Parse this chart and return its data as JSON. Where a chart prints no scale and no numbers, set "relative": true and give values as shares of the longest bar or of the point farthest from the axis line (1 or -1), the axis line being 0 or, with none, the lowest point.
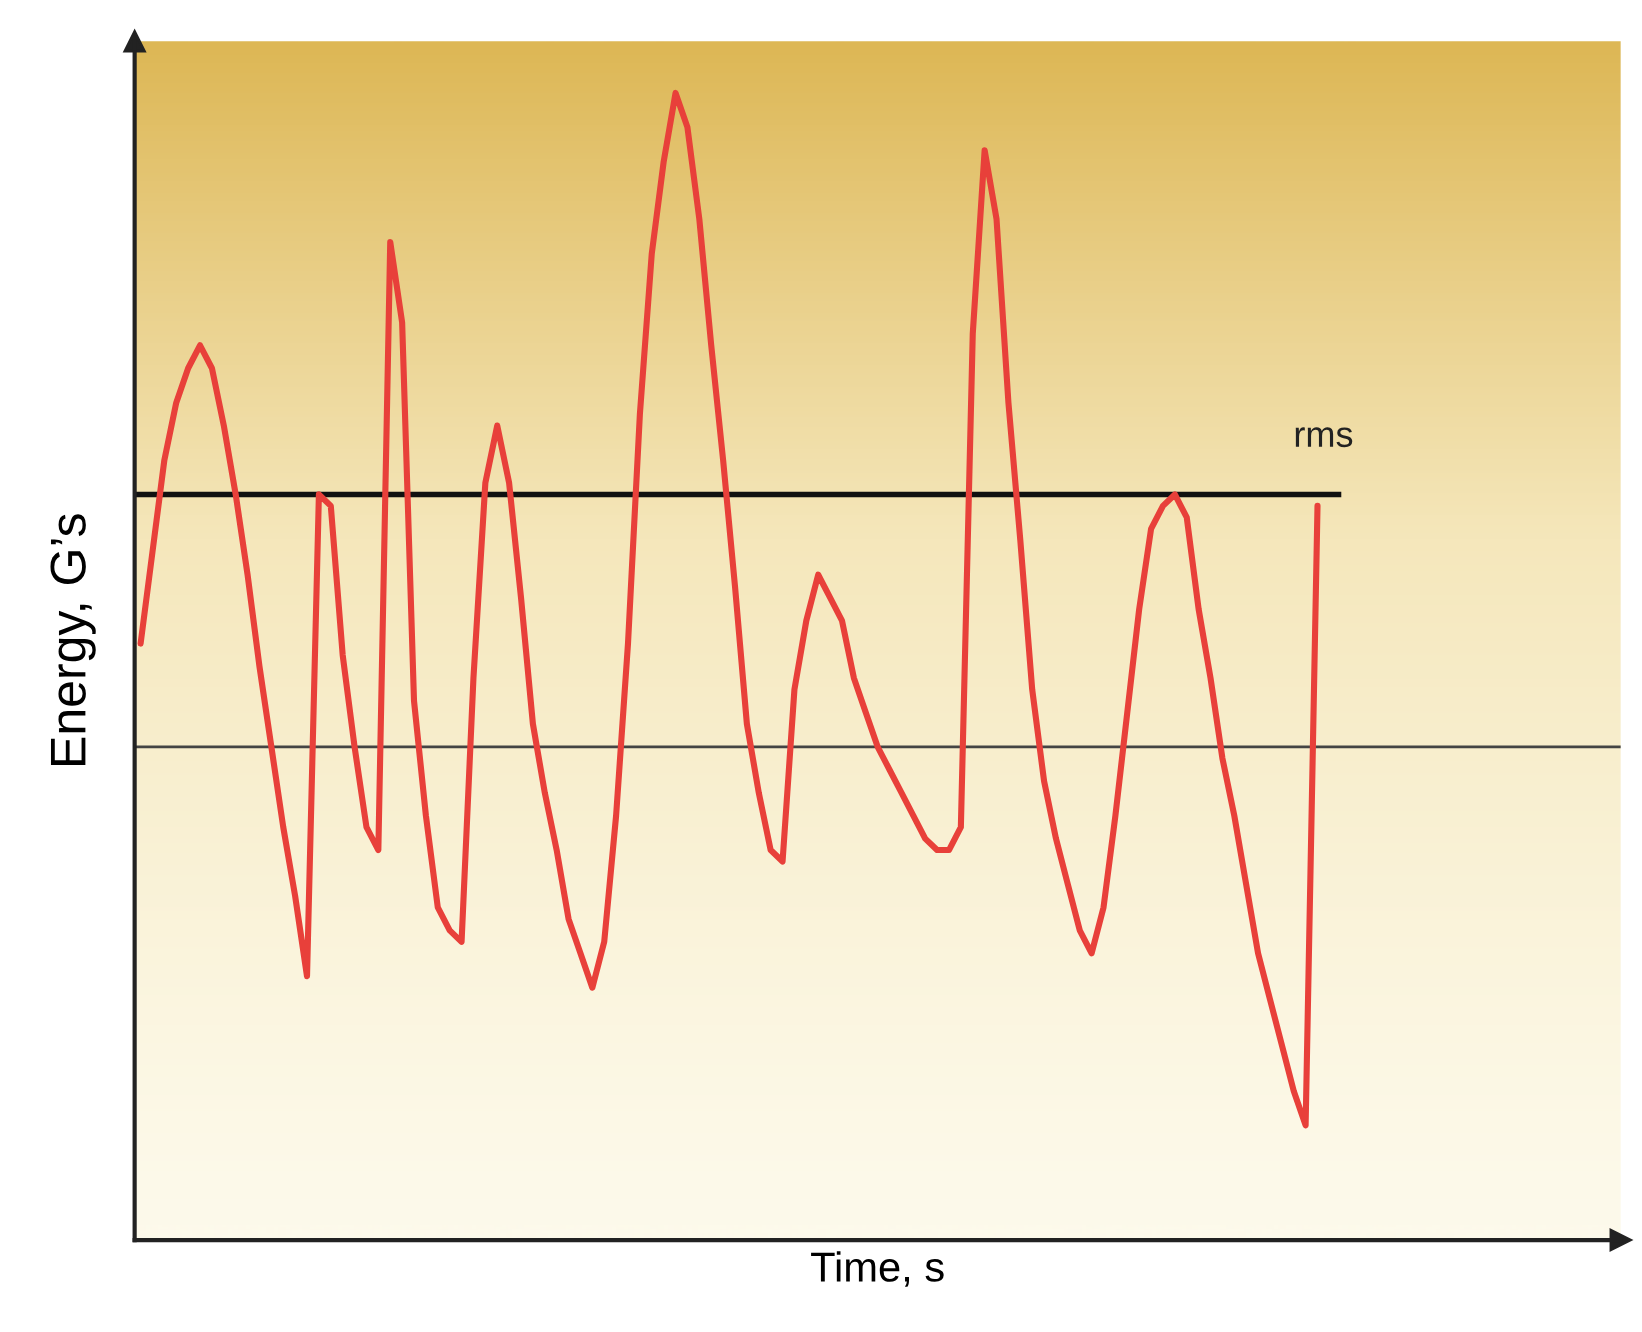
{
  "chart_data": {
    "type": "line",
    "relative": true,
    "xlabel": "Time, s",
    "ylabel": "Energy, G’s",
    "marker": "none",
    "line_style": "solid",
    "categories": [
      null,
      null,
      null,
      null,
      null,
      null,
      null,
      null,
      null,
      null,
      null,
      null,
      null,
      null,
      null,
      null,
      null,
      null,
      null,
      null,
      null,
      null,
      null,
      null,
      null,
      null,
      null,
      null,
      null,
      null,
      null,
      null,
      null,
      null,
      null,
      null,
      null,
      null,
      null,
      null,
      null,
      null,
      null,
      null,
      null,
      null,
      null,
      null,
      null,
      null,
      null,
      null,
      null,
      null,
      null,
      null,
      null,
      null,
      null,
      null,
      null,
      null,
      null,
      null,
      null,
      null,
      null,
      null,
      null,
      null,
      null,
      null,
      null,
      null,
      null,
      null,
      null,
      null,
      null,
      null,
      null,
      null,
      null,
      null,
      null,
      null,
      null,
      null,
      null,
      null,
      null,
      null,
      null,
      null,
      null,
      null,
      null,
      null,
      null,
      null,
      null,
      null,
      null,
      null,
      null,
      null,
      null,
      null,
      null,
      null,
      null,
      null,
      null,
      null,
      null,
      null,
      null,
      null,
      null,
      null,
      null,
      null,
      null,
      null,
      null
    ],
    "series": [
      {
        "color": "#e8403a",
        "values": [
          0.52,
          0.6,
          0.68,
          0.73,
          0.76,
          0.78,
          0.76,
          0.71,
          0.65,
          0.58,
          0.5,
          0.43,
          0.36,
          0.3,
          0.23,
          0.65,
          0.64,
          0.51,
          0.43,
          0.36,
          0.34,
          0.87,
          0.8,
          0.47,
          0.37,
          0.29,
          0.27,
          0.26,
          0.49,
          0.66,
          0.71,
          0.66,
          0.56,
          0.45,
          0.39,
          0.34,
          0.28,
          0.25,
          0.22,
          0.26,
          0.37,
          0.52,
          0.72,
          0.86,
          0.94,
          1.0,
          0.97,
          0.89,
          0.78,
          0.68,
          0.57,
          0.45,
          0.39,
          0.34,
          0.33,
          0.48,
          0.54,
          0.58,
          0.56,
          0.54,
          0.49,
          0.46,
          0.43,
          0.41,
          0.39,
          0.37,
          0.35,
          0.34,
          0.34,
          0.36,
          0.79,
          0.95,
          0.89,
          0.73,
          0.61,
          0.48,
          0.4,
          0.35,
          0.31,
          0.27,
          0.25,
          0.29,
          0.37,
          0.46,
          0.55,
          0.62,
          0.64,
          0.65,
          0.63,
          0.55,
          0.49,
          0.42,
          0.37,
          0.31,
          0.25,
          0.21,
          0.17,
          0.13,
          0.1,
          0.64,
          null,
          null,
          null,
          null,
          null,
          null,
          null,
          null,
          null,
          null,
          null,
          null,
          null,
          null,
          null,
          null,
          null,
          null,
          null,
          null,
          null,
          null,
          null,
          null,
          null
        ]
      }
    ],
    "ref_lines": [
      {
        "axis": "y",
        "value": 0.65,
        "label": "rms",
        "color": "#111111"
      },
      {
        "axis": "y",
        "value": 0.43,
        "color": "#444444"
      }
    ]
  }
}
